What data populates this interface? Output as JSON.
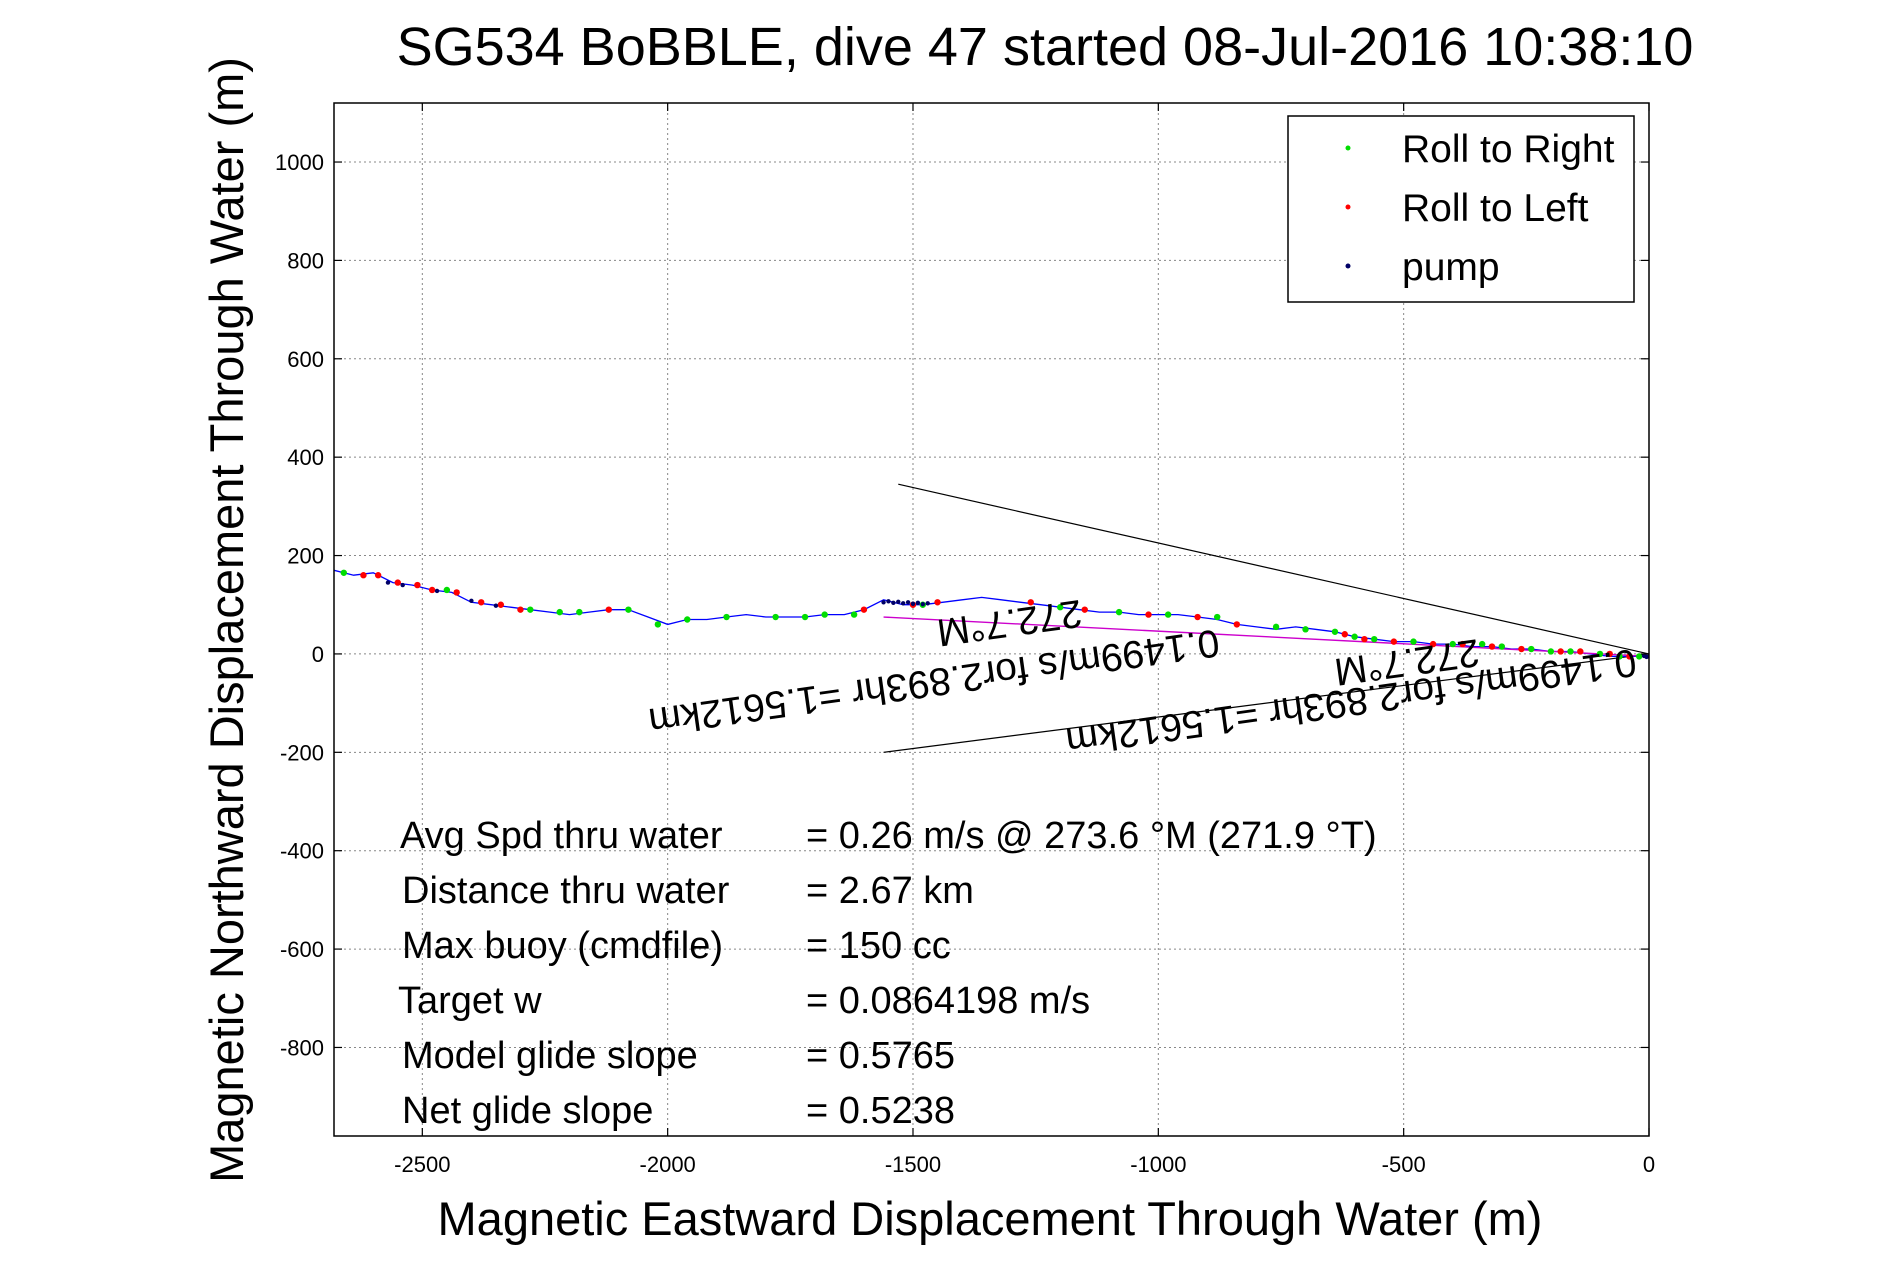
{
  "chart_data": {
    "type": "scatter",
    "title": "SG534 BoBBLE, dive 47 started 08-Jul-2016 10:38:10",
    "xlabel": "Magnetic Eastward Displacement Through Water (m)",
    "ylabel": "Magnetic Northward Displacement Through Water (m)",
    "xlim": [
      -2680,
      0
    ],
    "ylim": [
      -980,
      1120
    ],
    "xticks": [
      -2500,
      -2000,
      -1500,
      -1000,
      -500,
      0
    ],
    "yticks": [
      1000,
      800,
      600,
      400,
      200,
      0,
      -200,
      -400,
      -600,
      -800
    ],
    "grid": true,
    "legend_position": "top-right",
    "legend": [
      {
        "name": "Roll to Right",
        "color": "#00dd00"
      },
      {
        "name": "Roll to Left",
        "color": "#ff0000"
      },
      {
        "name": "pump",
        "color": "#000066"
      }
    ],
    "track": {
      "color": "#0000ff",
      "x": [
        -2680,
        -2640,
        -2600,
        -2560,
        -2520,
        -2480,
        -2440,
        -2400,
        -2360,
        -2320,
        -2280,
        -2240,
        -2200,
        -2160,
        -2120,
        -2080,
        -2040,
        -2000,
        -1960,
        -1920,
        -1880,
        -1840,
        -1800,
        -1760,
        -1720,
        -1680,
        -1640,
        -1600,
        -1560,
        -1520,
        -1480,
        -1440,
        -1400,
        -1360,
        -1320,
        -1280,
        -1240,
        -1200,
        -1160,
        -1120,
        -1080,
        -1040,
        -1000,
        -960,
        -920,
        -880,
        -840,
        -800,
        -760,
        -720,
        -680,
        -640,
        -600,
        -560,
        -520,
        -480,
        -440,
        -400,
        -360,
        -320,
        -280,
        -240,
        -200,
        -160,
        -120,
        -80,
        -40,
        0
      ],
      "y": [
        170,
        160,
        165,
        145,
        140,
        130,
        125,
        105,
        100,
        95,
        90,
        85,
        80,
        85,
        90,
        90,
        75,
        60,
        70,
        70,
        75,
        80,
        75,
        75,
        75,
        80,
        80,
        90,
        110,
        100,
        100,
        105,
        110,
        115,
        110,
        105,
        100,
        95,
        90,
        85,
        85,
        80,
        80,
        80,
        75,
        70,
        60,
        55,
        50,
        55,
        50,
        45,
        35,
        30,
        25,
        25,
        20,
        20,
        15,
        15,
        10,
        10,
        5,
        5,
        0,
        -5,
        -5,
        -5
      ]
    },
    "markers": {
      "right": {
        "x": [
          -2660,
          -2450,
          -2280,
          -2220,
          -2180,
          -2080,
          -2020,
          -1960,
          -1880,
          -1780,
          -1720,
          -1680,
          -1620,
          -1480,
          -1200,
          -1080,
          -980,
          -880,
          -760,
          -700,
          -640,
          -600,
          -560,
          -480,
          -400,
          -340,
          -300,
          -240,
          -200,
          -160,
          -100,
          -60,
          -20
        ],
        "y": [
          165,
          130,
          90,
          85,
          85,
          90,
          60,
          70,
          75,
          75,
          75,
          80,
          80,
          100,
          95,
          85,
          80,
          75,
          55,
          50,
          45,
          35,
          30,
          25,
          20,
          20,
          15,
          10,
          5,
          5,
          0,
          -5,
          -5
        ]
      },
      "left": {
        "x": [
          -2620,
          -2590,
          -2550,
          -2510,
          -2480,
          -2430,
          -2380,
          -2340,
          -2300,
          -2120,
          -1600,
          -1500,
          -1450,
          -1260,
          -1150,
          -1020,
          -920,
          -840,
          -620,
          -580,
          -520,
          -440,
          -380,
          -320,
          -260,
          -180,
          -140,
          -80,
          -40
        ],
        "y": [
          160,
          160,
          145,
          140,
          130,
          125,
          105,
          100,
          90,
          90,
          90,
          100,
          105,
          105,
          90,
          80,
          75,
          60,
          40,
          30,
          25,
          20,
          20,
          15,
          10,
          5,
          5,
          0,
          -5
        ]
      },
      "pump": {
        "x": [
          -1560,
          -1550,
          -1540,
          -1530,
          -1520,
          -1510,
          -1500,
          -1490,
          -1480,
          -1470,
          -2570,
          -2540,
          -2470,
          -2400,
          -2350,
          -10,
          -5,
          0
        ],
        "y": [
          105,
          107,
          104,
          106,
          103,
          105,
          102,
          104,
          101,
          103,
          145,
          140,
          128,
          108,
          98,
          -4,
          -6,
          -5
        ]
      }
    },
    "fit_line": {
      "color": "#cc00cc",
      "x": [
        -1560,
        0
      ],
      "y": [
        75,
        -5
      ]
    },
    "cone": {
      "color": "#000000",
      "upper": {
        "x": [
          -1530,
          0
        ],
        "y": [
          345,
          0
        ]
      },
      "lower": {
        "x": [
          -1560,
          0
        ],
        "y": [
          -200,
          0
        ]
      }
    },
    "rotated_labels": [
      {
        "text": "272.7°M",
        "x": -1160,
        "y": 110
      },
      {
        "text": "0.1499m/s for2.893hr =1.5612km",
        "x": -880,
        "y": 50
      },
      {
        "text": "272.7°M",
        "x": -350,
        "y": 30
      },
      {
        "text": "0.1499m/s for2.893hr =1.5612km",
        "x": -30,
        "y": 10
      }
    ],
    "annotations": [
      {
        "label": "Avg Spd thru water",
        "value": "=  0.26 m/s @ 273.6 °M (271.9 °T)"
      },
      {
        "label": "Distance thru water",
        "value": "=  2.67 km"
      },
      {
        "label": "Max buoy (cmdfile)",
        "value": "= 150 cc"
      },
      {
        "label": "Target w",
        "value": "= 0.0864198 m/s"
      },
      {
        "label": "Model glide slope",
        "value": "= 0.5765"
      },
      {
        "label": "Net glide slope",
        "value": "= 0.5238"
      }
    ]
  }
}
